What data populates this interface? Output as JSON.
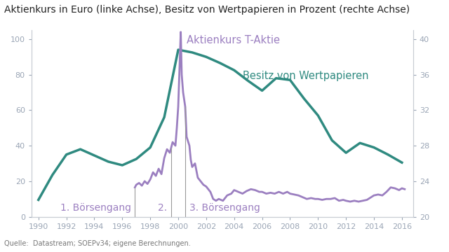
{
  "chart_data": {
    "type": "line",
    "title": "Aktienkurs in Euro (linke Achse), Besitz von Wertpapieren in Prozent (rechte Achse)",
    "source": "Quelle:  Datastream; SOEPv34; eigene Berechnungen.",
    "xlim": [
      1989.5,
      2016.8
    ],
    "xticks": [
      1990,
      1992,
      1994,
      1996,
      1998,
      2000,
      2002,
      2004,
      2006,
      2008,
      2010,
      2012,
      2014,
      2016
    ],
    "ylim": [
      0,
      105
    ],
    "yticks": [
      0,
      20,
      40,
      60,
      80,
      100
    ],
    "y2lim": [
      20,
      41
    ],
    "y2ticks": [
      20,
      24,
      28,
      32,
      36,
      40
    ],
    "grid": false,
    "series": [
      {
        "name": "Aktienkurs T-Aktie",
        "color": "#9b7fc0",
        "axis": "y",
        "x": [
          1996.9,
          1997.0,
          1997.2,
          1997.4,
          1997.6,
          1997.8,
          1998.0,
          1998.2,
          1998.4,
          1998.6,
          1998.8,
          1999.0,
          1999.2,
          1999.4,
          1999.6,
          1999.8,
          1999.9,
          2000.0,
          2000.1,
          2000.18,
          2000.25,
          2000.35,
          2000.5,
          2000.6,
          2000.8,
          2000.9,
          2001.0,
          2001.2,
          2001.4,
          2001.6,
          2001.8,
          2002.0,
          2002.3,
          2002.5,
          2002.7,
          2002.9,
          2003.2,
          2003.5,
          2003.8,
          2004.0,
          2004.3,
          2004.6,
          2004.9,
          2005.2,
          2005.5,
          2005.8,
          2006.0,
          2006.3,
          2006.6,
          2006.9,
          2007.2,
          2007.5,
          2007.8,
          2008.0,
          2008.3,
          2008.6,
          2008.9,
          2009.2,
          2009.5,
          2009.8,
          2010.0,
          2010.3,
          2010.6,
          2010.9,
          2011.2,
          2011.5,
          2011.8,
          2012.0,
          2012.3,
          2012.6,
          2012.9,
          2013.2,
          2013.5,
          2013.8,
          2014.0,
          2014.3,
          2014.6,
          2014.9,
          2015.2,
          2015.5,
          2015.8,
          2016.0,
          2016.2
        ],
        "values": [
          16.5,
          18,
          19,
          17.5,
          20,
          18.5,
          21,
          25,
          23,
          27,
          24,
          33,
          38,
          36,
          42,
          40,
          50,
          62,
          85,
          104,
          80,
          70,
          62,
          45,
          40,
          32,
          28,
          30,
          22,
          20,
          18,
          17,
          14,
          10,
          9,
          10,
          9,
          12,
          13,
          15,
          14,
          13,
          14.5,
          15.5,
          15,
          14,
          14,
          13,
          13.5,
          13,
          14,
          13,
          14,
          13,
          12.5,
          12,
          11,
          10,
          10.5,
          10,
          10,
          9.5,
          10,
          10,
          10.5,
          9,
          9.5,
          9,
          8.5,
          9,
          8.5,
          9,
          9.5,
          11,
          12,
          12.5,
          12,
          14,
          16.5,
          16,
          15,
          16,
          15.5
        ]
      },
      {
        "name": "Besitz von Wertpapieren",
        "color": "#2f8a80",
        "axis": "y2",
        "x": [
          1990,
          1991,
          1992,
          1993,
          1994,
          1995,
          1996,
          1997,
          1998,
          1999,
          2000,
          2001,
          2002,
          2003,
          2004,
          2005,
          2006,
          2007,
          2008,
          2009,
          2010,
          2011,
          2012,
          2013,
          2014,
          2015,
          2016
        ],
        "values": [
          21.9,
          24.7,
          27,
          27.6,
          26.9,
          26.2,
          25.8,
          26.5,
          27.8,
          31.2,
          38.8,
          38.5,
          38,
          37.3,
          36.5,
          35.3,
          34.2,
          35.6,
          35.4,
          33.3,
          31.4,
          28.6,
          27.2,
          28.3,
          27.8,
          27,
          26.1
        ]
      }
    ],
    "markers": [
      {
        "x": 1996.9,
        "label": "1. Börsengang"
      },
      {
        "x": 1999.5,
        "label": "2."
      },
      {
        "x": 2000.5,
        "label": "3. Börsengang"
      }
    ]
  }
}
